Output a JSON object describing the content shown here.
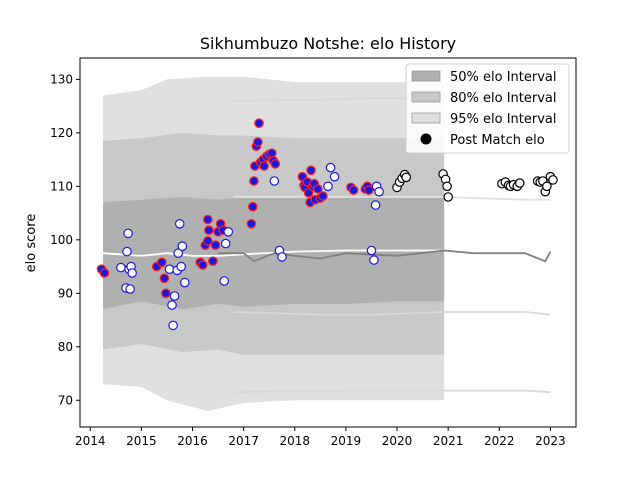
{
  "chart_data": {
    "type": "scatter",
    "title": "Sikhumbuzo Notshe: elo History",
    "xlabel": "",
    "ylabel": "elo score",
    "xlim": [
      2013.8,
      2023.5
    ],
    "ylim": [
      65,
      134
    ],
    "x_ticks": [
      2014,
      2015,
      2016,
      2017,
      2018,
      2019,
      2020,
      2021,
      2022,
      2023
    ],
    "y_ticks": [
      70,
      80,
      90,
      100,
      110,
      120,
      130
    ],
    "grid": false,
    "legend": {
      "placement": "top-right",
      "entries": [
        {
          "label": "50% elo Interval",
          "swatch": "#b0b0b0"
        },
        {
          "label": "80% elo Interval",
          "swatch": "#c8c8c8"
        },
        {
          "label": "95% elo Interval",
          "swatch": "#e0e0e0"
        },
        {
          "label": "Post Match elo",
          "marker": "#000000"
        }
      ]
    },
    "intervals": {
      "x_range": [
        2014.25,
        2020.92
      ],
      "band_50": [
        {
          "x": 2014.25,
          "lo": 87.0,
          "hi": 107.0
        },
        {
          "x": 2015.0,
          "lo": 88.5,
          "hi": 107.5
        },
        {
          "x": 2015.8,
          "lo": 87.0,
          "hi": 108.0
        },
        {
          "x": 2016.5,
          "lo": 88.0,
          "hi": 107.5
        },
        {
          "x": 2017.0,
          "lo": 87.5,
          "hi": 108.0
        },
        {
          "x": 2018.0,
          "lo": 88.0,
          "hi": 108.0
        },
        {
          "x": 2019.0,
          "lo": 88.0,
          "hi": 108.0
        },
        {
          "x": 2020.0,
          "lo": 88.5,
          "hi": 108.0
        },
        {
          "x": 2020.92,
          "lo": 88.5,
          "hi": 108.0
        }
      ],
      "band_80": [
        {
          "x": 2014.25,
          "lo": 79.5,
          "hi": 118.5
        },
        {
          "x": 2015.0,
          "lo": 80.5,
          "hi": 119.0
        },
        {
          "x": 2015.8,
          "lo": 79.0,
          "hi": 120.0
        },
        {
          "x": 2016.5,
          "lo": 79.5,
          "hi": 119.5
        },
        {
          "x": 2017.0,
          "lo": 78.5,
          "hi": 119.5
        },
        {
          "x": 2018.0,
          "lo": 78.5,
          "hi": 119.0
        },
        {
          "x": 2019.0,
          "lo": 78.5,
          "hi": 119.0
        },
        {
          "x": 2020.0,
          "lo": 78.5,
          "hi": 119.0
        },
        {
          "x": 2020.92,
          "lo": 78.5,
          "hi": 119.0
        }
      ],
      "band_95": [
        {
          "x": 2014.25,
          "lo": 73.0,
          "hi": 127.0
        },
        {
          "x": 2015.0,
          "lo": 72.5,
          "hi": 128.0
        },
        {
          "x": 2015.5,
          "lo": 70.0,
          "hi": 130.0
        },
        {
          "x": 2016.3,
          "lo": 68.0,
          "hi": 130.5
        },
        {
          "x": 2017.0,
          "lo": 69.5,
          "hi": 130.5
        },
        {
          "x": 2018.0,
          "lo": 70.0,
          "hi": 129.5
        },
        {
          "x": 2019.0,
          "lo": 70.0,
          "hi": 129.5
        },
        {
          "x": 2020.0,
          "lo": 70.0,
          "hi": 129.5
        },
        {
          "x": 2020.92,
          "lo": 70.0,
          "hi": 129.5
        }
      ]
    },
    "lines": [
      {
        "color": "#ffffff",
        "points": [
          [
            2014.25,
            97.5
          ],
          [
            2015.0,
            97.0
          ],
          [
            2015.5,
            97.5
          ],
          [
            2016.0,
            97.0
          ],
          [
            2016.5,
            97.0
          ],
          [
            2017.0,
            97.3
          ],
          [
            2018.0,
            97.8
          ],
          [
            2019.0,
            98.0
          ],
          [
            2020.0,
            98.0
          ],
          [
            2020.92,
            98.0
          ]
        ]
      },
      {
        "color": "#808080",
        "points": [
          [
            2016.5,
            97.5
          ],
          [
            2017.0,
            97.5
          ],
          [
            2017.2,
            96.0
          ],
          [
            2017.6,
            97.5
          ],
          [
            2018.0,
            97.0
          ],
          [
            2018.5,
            96.5
          ],
          [
            2019.0,
            97.5
          ],
          [
            2020.0,
            97.0
          ],
          [
            2020.92,
            98.0
          ],
          [
            2021.5,
            97.5
          ],
          [
            2022.5,
            97.5
          ],
          [
            2022.9,
            96.0
          ],
          [
            2023.0,
            97.8
          ]
        ]
      },
      {
        "color": "#d8d8d8",
        "points": [
          [
            2016.8,
            126.0
          ],
          [
            2018.5,
            126.2
          ],
          [
            2019.5,
            126.5
          ],
          [
            2020.92,
            126.5
          ],
          [
            2022.5,
            126.8
          ],
          [
            2023.0,
            127.0
          ]
        ]
      },
      {
        "color": "#d8d8d8",
        "points": [
          [
            2016.8,
            86.5
          ],
          [
            2018.5,
            86.0
          ],
          [
            2019.5,
            86.0
          ],
          [
            2020.92,
            86.5
          ],
          [
            2022.5,
            86.5
          ],
          [
            2023.0,
            86.0
          ]
        ]
      },
      {
        "color": "#d8d8d8",
        "points": [
          [
            2016.8,
            71.5
          ],
          [
            2019.0,
            71.8
          ],
          [
            2020.92,
            71.8
          ],
          [
            2022.5,
            71.8
          ],
          [
            2023.0,
            71.5
          ]
        ]
      },
      {
        "color": "#e0e0e0",
        "points": [
          [
            2016.8,
            108.0
          ],
          [
            2019.0,
            108.0
          ],
          [
            2020.92,
            108.0
          ],
          [
            2022.5,
            107.5
          ],
          [
            2023.0,
            107.5
          ]
        ]
      }
    ],
    "series": [
      {
        "style": "red-blue",
        "points": [
          [
            2014.22,
            94.5
          ],
          [
            2014.28,
            93.8
          ],
          [
            2015.3,
            95.0
          ],
          [
            2015.4,
            95.8
          ],
          [
            2015.45,
            92.8
          ],
          [
            2015.48,
            90.0
          ],
          [
            2016.15,
            95.8
          ],
          [
            2016.2,
            95.3
          ],
          [
            2016.25,
            99.0
          ],
          [
            2016.3,
            99.8
          ],
          [
            2016.3,
            103.8
          ],
          [
            2016.32,
            101.8
          ],
          [
            2016.4,
            96.0
          ],
          [
            2016.45,
            99.0
          ],
          [
            2016.5,
            101.5
          ],
          [
            2016.55,
            103.0
          ],
          [
            2016.6,
            101.8
          ],
          [
            2017.15,
            103.0
          ],
          [
            2017.18,
            106.2
          ],
          [
            2017.2,
            111.0
          ],
          [
            2017.22,
            113.8
          ],
          [
            2017.25,
            117.5
          ],
          [
            2017.28,
            118.3
          ],
          [
            2017.3,
            121.8
          ],
          [
            2017.33,
            114.5
          ],
          [
            2017.38,
            115.0
          ],
          [
            2017.4,
            113.8
          ],
          [
            2017.45,
            115.6
          ],
          [
            2017.5,
            116.0
          ],
          [
            2017.55,
            116.2
          ],
          [
            2017.58,
            114.8
          ],
          [
            2017.62,
            114.2
          ],
          [
            2018.15,
            111.8
          ],
          [
            2018.18,
            110.2
          ],
          [
            2018.2,
            109.8
          ],
          [
            2018.25,
            110.8
          ],
          [
            2018.27,
            108.8
          ],
          [
            2018.3,
            107.0
          ],
          [
            2018.32,
            113.0
          ],
          [
            2018.35,
            110.0
          ],
          [
            2018.38,
            110.5
          ],
          [
            2018.4,
            107.5
          ],
          [
            2018.45,
            109.5
          ],
          [
            2018.5,
            107.8
          ],
          [
            2018.55,
            108.2
          ],
          [
            2019.1,
            109.8
          ],
          [
            2019.15,
            109.3
          ],
          [
            2019.38,
            109.5
          ],
          [
            2019.42,
            110.0
          ],
          [
            2019.45,
            109.3
          ]
        ]
      },
      {
        "style": "white-blue",
        "points": [
          [
            2014.6,
            94.8
          ],
          [
            2014.7,
            91.0
          ],
          [
            2014.72,
            97.8
          ],
          [
            2014.74,
            101.2
          ],
          [
            2014.76,
            94.5
          ],
          [
            2014.8,
            95.0
          ],
          [
            2014.78,
            90.8
          ],
          [
            2014.82,
            93.8
          ],
          [
            2015.55,
            94.5
          ],
          [
            2015.6,
            87.8
          ],
          [
            2015.62,
            84.0
          ],
          [
            2015.65,
            89.5
          ],
          [
            2015.7,
            94.3
          ],
          [
            2015.72,
            97.5
          ],
          [
            2015.75,
            103.0
          ],
          [
            2015.78,
            95.0
          ],
          [
            2015.8,
            98.8
          ],
          [
            2015.85,
            92.0
          ],
          [
            2016.62,
            92.3
          ],
          [
            2016.65,
            99.3
          ],
          [
            2016.7,
            101.5
          ],
          [
            2017.6,
            111.0
          ],
          [
            2017.7,
            98.0
          ],
          [
            2017.75,
            96.8
          ],
          [
            2018.65,
            110.0
          ],
          [
            2018.7,
            113.5
          ],
          [
            2018.78,
            111.8
          ],
          [
            2019.5,
            98.0
          ],
          [
            2019.55,
            96.2
          ],
          [
            2019.58,
            106.5
          ],
          [
            2019.6,
            110.0
          ],
          [
            2019.65,
            109.0
          ]
        ]
      },
      {
        "style": "white-black",
        "points": [
          [
            2020.0,
            109.8
          ],
          [
            2020.05,
            110.8
          ],
          [
            2020.1,
            111.5
          ],
          [
            2020.15,
            112.2
          ],
          [
            2020.18,
            111.7
          ],
          [
            2020.9,
            112.3
          ],
          [
            2020.95,
            111.3
          ],
          [
            2020.98,
            110.0
          ],
          [
            2021.0,
            108.0
          ],
          [
            2022.05,
            110.5
          ],
          [
            2022.12,
            110.8
          ],
          [
            2022.18,
            110.2
          ],
          [
            2022.22,
            110.0
          ],
          [
            2022.28,
            110.3
          ],
          [
            2022.35,
            110.0
          ],
          [
            2022.4,
            110.6
          ],
          [
            2022.75,
            111.0
          ],
          [
            2022.8,
            110.8
          ],
          [
            2022.85,
            111.0
          ],
          [
            2022.9,
            109.0
          ],
          [
            2022.93,
            110.0
          ],
          [
            2023.0,
            111.8
          ],
          [
            2023.05,
            111.2
          ]
        ]
      }
    ]
  }
}
